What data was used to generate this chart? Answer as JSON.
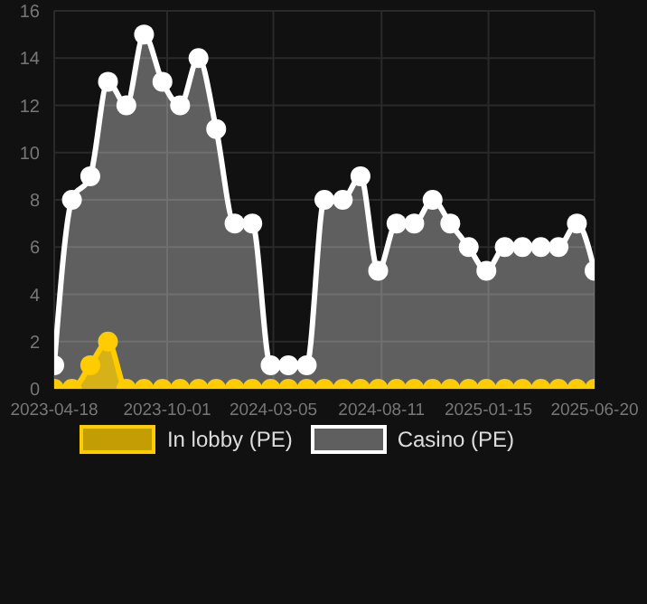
{
  "chart_data": {
    "type": "area",
    "x": [
      "2023-04-18",
      "2023-05-14",
      "2023-06-10",
      "2023-07-06",
      "2023-08-02",
      "2023-08-28",
      "2023-09-24",
      "2023-10-20",
      "2023-11-16",
      "2023-12-12",
      "2024-01-08",
      "2024-02-03",
      "2024-03-01",
      "2024-03-27",
      "2024-04-23",
      "2024-05-19",
      "2024-06-15",
      "2024-07-11",
      "2024-08-06",
      "2024-09-02",
      "2024-09-28",
      "2024-10-25",
      "2024-11-20",
      "2024-12-17",
      "2025-01-12",
      "2025-02-08",
      "2025-03-06",
      "2025-04-02",
      "2025-04-28",
      "2025-05-25",
      "2025-06-20"
    ],
    "series": [
      {
        "name": "In lobby (PE)",
        "color": "#ffcc00",
        "values": [
          0,
          0,
          1,
          2,
          0,
          0,
          0,
          0,
          0,
          0,
          0,
          0,
          0,
          0,
          0,
          0,
          0,
          0,
          0,
          0,
          0,
          0,
          0,
          0,
          0,
          0,
          0,
          0,
          0,
          0,
          0
        ]
      },
      {
        "name": "Casino (PE)",
        "color": "#ffffff",
        "values": [
          1,
          8,
          9,
          13,
          12,
          15,
          13,
          12,
          14,
          11,
          7,
          7,
          1,
          1,
          1,
          8,
          8,
          9,
          5,
          7,
          7,
          8,
          7,
          6,
          5,
          6,
          6,
          6,
          6,
          7,
          5
        ]
      }
    ],
    "xlim": [
      "2023-04-18",
      "2025-06-20"
    ],
    "xticks": [
      {
        "value": "2023-04-18",
        "label": "2023-04-18"
      },
      {
        "value": "2023-10-01",
        "label": "2023-10-01"
      },
      {
        "value": "2024-03-05",
        "label": "2024-03-05"
      },
      {
        "value": "2024-08-11",
        "label": "2024-08-11"
      },
      {
        "value": "2025-01-15",
        "label": "2025-01-15"
      },
      {
        "value": "2025-06-20",
        "label": "2025-06-20"
      }
    ],
    "ylim": [
      0,
      16
    ],
    "yticks": [
      0,
      2,
      4,
      6,
      8,
      10,
      12,
      14,
      16
    ],
    "grid": true,
    "legend": "bottom",
    "marker": "circle",
    "line_style": "solid"
  }
}
